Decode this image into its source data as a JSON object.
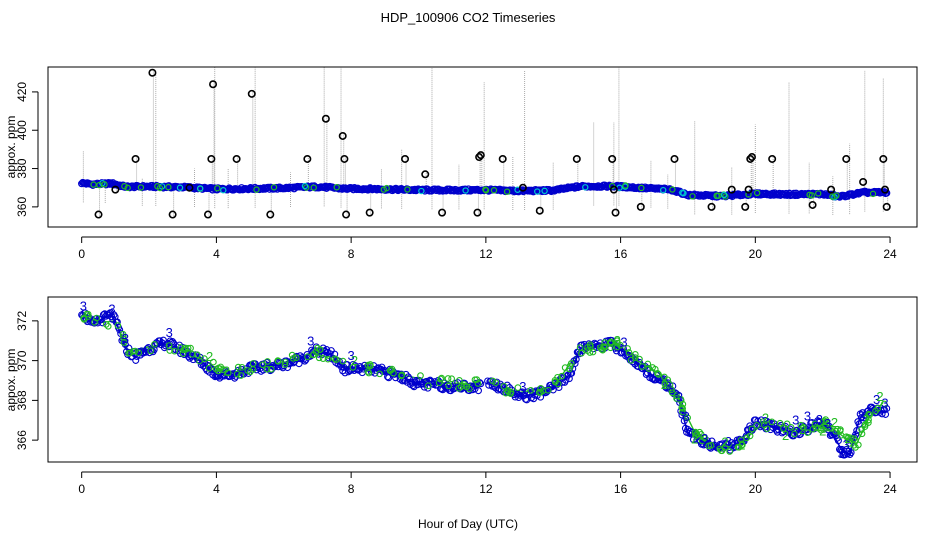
{
  "figure": {
    "title": "HDP_100906  CO2 Timeseries",
    "xlabel": "Hour of Day (UTC)"
  },
  "colors": {
    "outlier": "#000000",
    "range_line": "#aaaaaa",
    "series_blue": "#0000cc",
    "series_green": "#22bb22",
    "series_cyan": "#00cccc"
  },
  "chart_data": [
    {
      "type": "scatter",
      "name": "full-range",
      "ylabel": "appox. ppm",
      "xlim": [
        -1,
        24.8
      ],
      "ylim": [
        349.5,
        433
      ],
      "xticks": [
        0,
        4,
        8,
        12,
        16,
        20,
        24
      ],
      "yticks": [
        360,
        380,
        400,
        420
      ],
      "baseline": [
        [
          0,
          372.5
        ],
        [
          0.3,
          371.8
        ],
        [
          0.9,
          372.2
        ],
        [
          1.3,
          370.5
        ],
        [
          2,
          370.6
        ],
        [
          3,
          370.3
        ],
        [
          4,
          369.3
        ],
        [
          5,
          369.5
        ],
        [
          6,
          369.8
        ],
        [
          7,
          370.5
        ],
        [
          7.8,
          369.5
        ],
        [
          8.5,
          369.4
        ],
        [
          10,
          368.8
        ],
        [
          11,
          368.7
        ],
        [
          12,
          368.8
        ],
        [
          13,
          368.3
        ],
        [
          14,
          368.6
        ],
        [
          14.8,
          370.7
        ],
        [
          15.8,
          370.8
        ],
        [
          16.5,
          370
        ],
        [
          17.5,
          369
        ],
        [
          18,
          366.2
        ],
        [
          19,
          365.6
        ],
        [
          20,
          366.8
        ],
        [
          21,
          366.5
        ],
        [
          22,
          366.7
        ],
        [
          22.5,
          365.3
        ],
        [
          23.2,
          367.5
        ],
        [
          23.9,
          367.5
        ]
      ],
      "outliers": [
        [
          0.5,
          356
        ],
        [
          1.0,
          369
        ],
        [
          1.6,
          385
        ],
        [
          2.1,
          430
        ],
        [
          2.7,
          356
        ],
        [
          3.2,
          370
        ],
        [
          3.75,
          356
        ],
        [
          3.85,
          385
        ],
        [
          3.9,
          424
        ],
        [
          4.6,
          385
        ],
        [
          5.05,
          419
        ],
        [
          5.6,
          356
        ],
        [
          6.7,
          385
        ],
        [
          7.25,
          406
        ],
        [
          7.75,
          397
        ],
        [
          7.8,
          385
        ],
        [
          7.85,
          356
        ],
        [
          8.55,
          357
        ],
        [
          9.6,
          385
        ],
        [
          10.2,
          377
        ],
        [
          10.7,
          357
        ],
        [
          11.75,
          357
        ],
        [
          11.8,
          386
        ],
        [
          11.85,
          387
        ],
        [
          12.5,
          385
        ],
        [
          13.1,
          370
        ],
        [
          13.6,
          358
        ],
        [
          14.7,
          385
        ],
        [
          15.75,
          385
        ],
        [
          15.8,
          369
        ],
        [
          15.85,
          357
        ],
        [
          16.6,
          360
        ],
        [
          17.6,
          385
        ],
        [
          18.7,
          360
        ],
        [
          19.3,
          369
        ],
        [
          19.7,
          360
        ],
        [
          19.8,
          369
        ],
        [
          19.85,
          385
        ],
        [
          19.9,
          386
        ],
        [
          20.5,
          385
        ],
        [
          21.7,
          361
        ],
        [
          22.25,
          369
        ],
        [
          22.7,
          385
        ],
        [
          23.2,
          373
        ],
        [
          23.8,
          385
        ],
        [
          23.85,
          369
        ],
        [
          23.9,
          360
        ]
      ],
      "spikes": [
        [
          0.05,
          389
        ],
        [
          0.7,
          372
        ],
        [
          1.8,
          375
        ],
        [
          2.2,
          431
        ],
        [
          3.35,
          380
        ],
        [
          3.95,
          433
        ],
        [
          4.35,
          380
        ],
        [
          5.15,
          433
        ],
        [
          6.2,
          378
        ],
        [
          7.2,
          433
        ],
        [
          7.7,
          433
        ],
        [
          8.9,
          380
        ],
        [
          9.5,
          390
        ],
        [
          10.4,
          433
        ],
        [
          11.2,
          382
        ],
        [
          11.95,
          425
        ],
        [
          12.8,
          386
        ],
        [
          13.15,
          431
        ],
        [
          14.0,
          383
        ],
        [
          15.2,
          404
        ],
        [
          15.8,
          404
        ],
        [
          15.95,
          433
        ],
        [
          16.9,
          384
        ],
        [
          17.4,
          377
        ],
        [
          18.2,
          405
        ],
        [
          19.3,
          381
        ],
        [
          20.0,
          403
        ],
        [
          21.0,
          425
        ],
        [
          21.6,
          383
        ],
        [
          22.3,
          376
        ],
        [
          22.8,
          393
        ],
        [
          23.25,
          431
        ],
        [
          23.8,
          427
        ]
      ]
    },
    {
      "type": "line",
      "name": "zoomed",
      "ylabel": "appox. ppm",
      "xlim": [
        -1,
        24.8
      ],
      "ylim": [
        364.9,
        373.2
      ],
      "xticks": [
        0,
        4,
        8,
        12,
        16,
        20,
        24
      ],
      "yticks": [
        366,
        368,
        370,
        372
      ],
      "point_labels": [
        "3",
        "2"
      ],
      "series": [
        {
          "name": "blue",
          "values": [
            [
              0,
              372.5
            ],
            [
              0.3,
              371.8
            ],
            [
              0.6,
              372.1
            ],
            [
              0.9,
              372.3
            ],
            [
              1.1,
              371.6
            ],
            [
              1.3,
              370.6
            ],
            [
              1.6,
              370.2
            ],
            [
              2,
              370.6
            ],
            [
              2.5,
              370.9
            ],
            [
              3,
              370.5
            ],
            [
              3.5,
              370
            ],
            [
              4,
              369.3
            ],
            [
              4.5,
              369.3
            ],
            [
              5,
              369.6
            ],
            [
              5.5,
              369.7
            ],
            [
              6,
              369.8
            ],
            [
              6.5,
              370.1
            ],
            [
              7,
              370.5
            ],
            [
              7.4,
              370.3
            ],
            [
              7.8,
              369.6
            ],
            [
              8.2,
              369.6
            ],
            [
              8.8,
              369.5
            ],
            [
              9.5,
              369.2
            ],
            [
              10,
              368.8
            ],
            [
              10.5,
              368.8
            ],
            [
              11,
              368.7
            ],
            [
              11.8,
              368.7
            ],
            null,
            [
              12.1,
              368.9
            ],
            [
              12.6,
              368.6
            ],
            [
              13,
              368.2
            ],
            [
              13.5,
              368.3
            ],
            [
              14,
              368.6
            ],
            [
              14.5,
              369.3
            ],
            [
              14.8,
              370.6
            ],
            [
              15.2,
              370.8
            ],
            [
              15.8,
              370.8
            ],
            [
              16.2,
              370.3
            ],
            [
              16.6,
              369.7
            ],
            [
              17,
              369.2
            ],
            [
              17.4,
              368.8
            ],
            [
              17.7,
              368.2
            ],
            [
              18,
              366.3
            ],
            [
              18.5,
              365.9
            ],
            [
              19,
              365.6
            ],
            [
              19.5,
              365.8
            ],
            [
              20,
              366.9
            ],
            [
              20.4,
              366.7
            ],
            [
              20.8,
              366.5
            ],
            [
              21.2,
              366.4
            ],
            [
              21.6,
              366.6
            ],
            [
              22,
              366.9
            ],
            [
              22.3,
              366.3
            ],
            [
              22.6,
              365.4
            ],
            [
              22.8,
              365.3
            ],
            [
              23.1,
              367.1
            ],
            [
              23.5,
              367.6
            ],
            [
              23.9,
              367.4
            ]
          ]
        },
        {
          "name": "green",
          "values": [
            [
              0,
              372.3
            ],
            [
              0.5,
              371.9
            ],
            [
              1,
              372
            ],
            [
              1.4,
              370.4
            ],
            [
              2,
              370.7
            ],
            [
              2.5,
              370.8
            ],
            [
              3,
              370.6
            ],
            [
              3.5,
              370.2
            ],
            [
              4,
              369.6
            ],
            [
              4.5,
              369.4
            ],
            [
              5,
              369.6
            ],
            [
              6,
              369.9
            ],
            [
              7,
              370.4
            ],
            [
              7.8,
              369.7
            ],
            [
              8.5,
              369.6
            ],
            [
              9.5,
              369.3
            ],
            [
              10.5,
              368.9
            ],
            [
              11.8,
              368.8
            ],
            null,
            [
              12.2,
              368.8
            ],
            [
              13,
              368.4
            ],
            [
              14,
              368.7
            ],
            [
              14.8,
              370.5
            ],
            [
              15.8,
              370.9
            ],
            [
              16.5,
              370
            ],
            [
              17.2,
              369.3
            ],
            [
              17.8,
              367.8
            ],
            [
              18.2,
              366.4
            ],
            [
              19,
              365.5
            ],
            [
              19.6,
              365.9
            ],
            [
              20.2,
              366.8
            ],
            [
              20.8,
              366.6
            ],
            [
              21.5,
              366.5
            ],
            [
              22.1,
              366.8
            ],
            [
              22.6,
              366.2
            ],
            [
              23,
              365.8
            ],
            [
              23.4,
              367.2
            ],
            [
              23.8,
              367.9
            ]
          ]
        }
      ]
    }
  ]
}
